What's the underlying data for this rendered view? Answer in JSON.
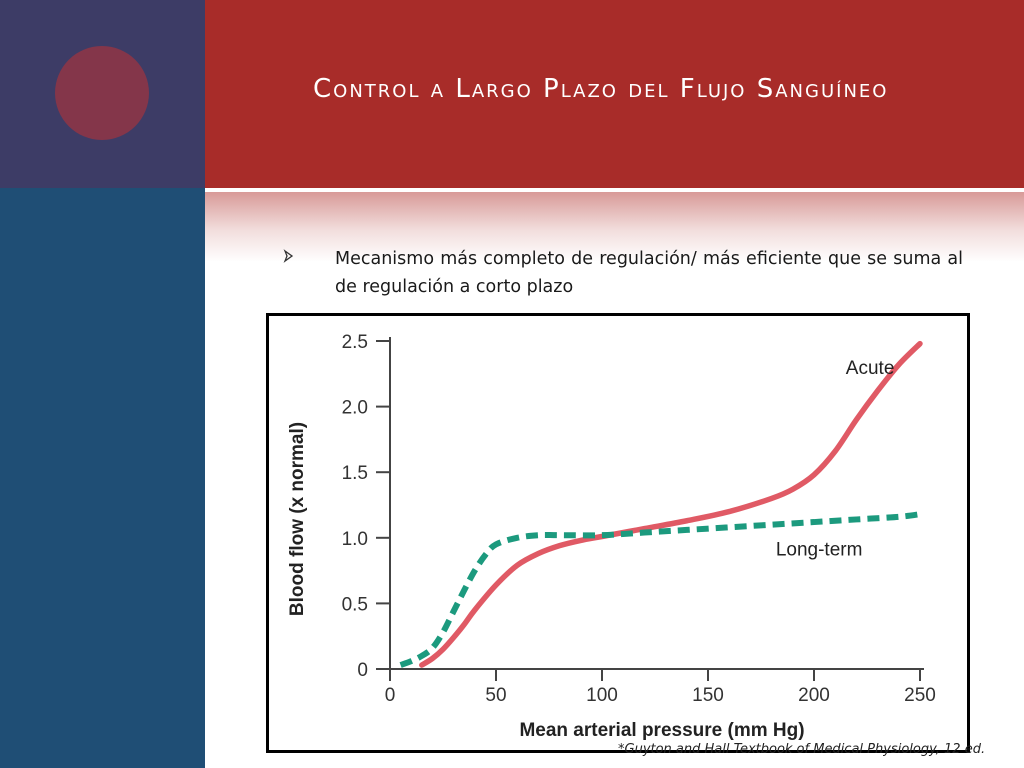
{
  "slide": {
    "title": "Control a Largo Plazo del Flujo Sanguíneo",
    "bullet_text": "Mecanismo más completo de regulación/ más eficiente que se suma al de regulación a corto plazo",
    "citation": "*Guyton and Hall Textbook of Medical Physiology, 12 ed."
  },
  "colors": {
    "header": "#a82c29",
    "left_top": "#3d3c66",
    "left_bottom": "#1f4e75",
    "circle": "#84364a",
    "acute": "#e05a65",
    "long_term": "#1c9a7e"
  },
  "chart_data": {
    "type": "line",
    "xlabel": "Mean arterial pressure (mm Hg)",
    "ylabel": "Blood flow (x normal)",
    "xlim": [
      0,
      250
    ],
    "ylim": [
      0,
      2.5
    ],
    "xticks": [
      0,
      50,
      100,
      150,
      200,
      250
    ],
    "yticks": [
      0,
      0.5,
      1.0,
      1.5,
      2.0,
      2.5
    ],
    "xtick_labels": [
      "0",
      "50",
      "100",
      "150",
      "200",
      "250"
    ],
    "ytick_labels": [
      "0",
      "0.5",
      "1.0",
      "1.5",
      "2.0",
      "2.5"
    ],
    "series": [
      {
        "name": "Acute",
        "style": "solid",
        "x": [
          15,
          20,
          25,
          30,
          35,
          40,
          50,
          60,
          70,
          80,
          90,
          100,
          120,
          140,
          160,
          180,
          190,
          200,
          210,
          220,
          230,
          240,
          250
        ],
        "y": [
          0.03,
          0.08,
          0.15,
          0.24,
          0.34,
          0.45,
          0.64,
          0.79,
          0.88,
          0.94,
          0.98,
          1.01,
          1.07,
          1.13,
          1.2,
          1.3,
          1.37,
          1.48,
          1.66,
          1.9,
          2.12,
          2.32,
          2.48
        ]
      },
      {
        "name": "Long-term",
        "style": "dashed",
        "x": [
          5,
          10,
          15,
          20,
          25,
          30,
          35,
          40,
          45,
          50,
          60,
          70,
          80,
          100,
          120,
          140,
          160,
          180,
          200,
          220,
          240,
          250
        ],
        "y": [
          0.03,
          0.06,
          0.1,
          0.16,
          0.28,
          0.44,
          0.6,
          0.75,
          0.87,
          0.95,
          1.0,
          1.02,
          1.02,
          1.02,
          1.04,
          1.06,
          1.08,
          1.1,
          1.12,
          1.14,
          1.16,
          1.18
        ]
      }
    ]
  }
}
